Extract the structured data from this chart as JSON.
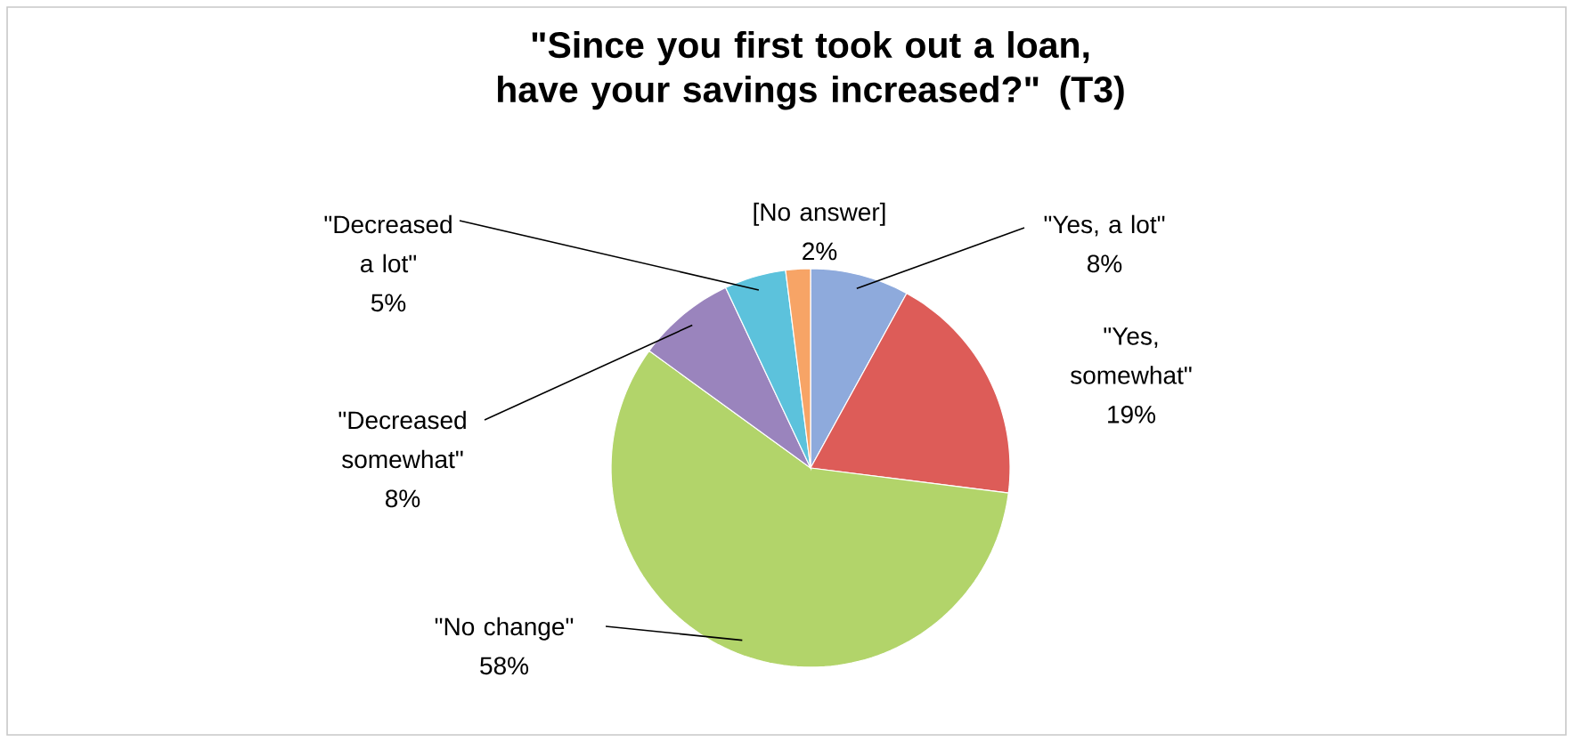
{
  "chart_data": {
    "type": "pie",
    "title": "\"Since you first took out a loan, have your savings increased?\" (T3)",
    "categories": [
      "\"Yes, a lot\"",
      "\"Yes, somewhat\"",
      "\"No change\"",
      "\"Decreased somewhat\"",
      "\"Decreased a lot\"",
      "[No answer]"
    ],
    "values": [
      8,
      19,
      58,
      8,
      5,
      2
    ],
    "value_labels": [
      "8%",
      "19%",
      "58%",
      "8%",
      "5%",
      "2%"
    ],
    "colors": [
      "#8eaadc",
      "#dd5c58",
      "#b2d46a",
      "#9a84bd",
      "#5cc2dc",
      "#f7a466"
    ]
  }
}
